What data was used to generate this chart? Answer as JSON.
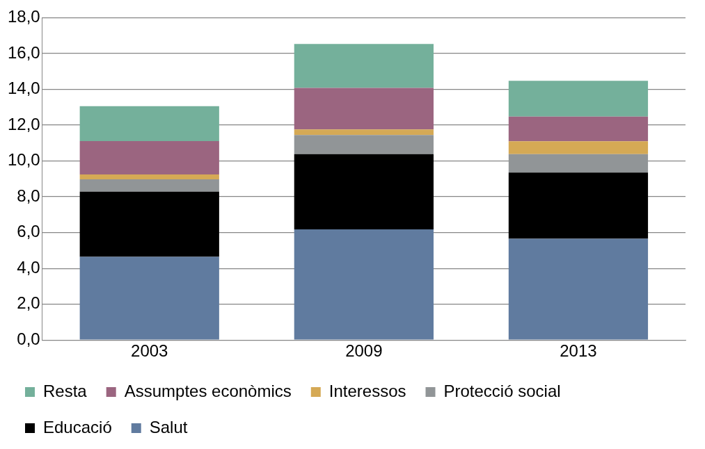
{
  "chart_data": {
    "type": "bar",
    "stacked": true,
    "categories": [
      "2003",
      "2009",
      "2013"
    ],
    "series": [
      {
        "name": "Salut",
        "color": "#607b9f",
        "values": [
          4.65,
          6.18,
          5.65
        ]
      },
      {
        "name": "Educació",
        "color": "#000000",
        "values": [
          3.63,
          4.2,
          3.7
        ]
      },
      {
        "name": "Protecció social",
        "color": "#919597",
        "values": [
          0.69,
          1.07,
          1.03
        ]
      },
      {
        "name": "Interessos",
        "color": "#d5a955",
        "values": [
          0.27,
          0.31,
          0.72
        ]
      },
      {
        "name": "Assumptes econòmics",
        "color": "#9b6580",
        "values": [
          1.87,
          2.32,
          1.38
        ]
      },
      {
        "name": "Resta",
        "color": "#74b09b",
        "values": [
          1.95,
          2.45,
          1.99
        ]
      }
    ],
    "ylim": [
      0,
      18
    ],
    "yticks": [
      {
        "value": 0,
        "label": "0,0"
      },
      {
        "value": 2,
        "label": "2,0"
      },
      {
        "value": 4,
        "label": "4,0"
      },
      {
        "value": 6,
        "label": "6,0"
      },
      {
        "value": 8,
        "label": "8,0"
      },
      {
        "value": 10,
        "label": "10,0"
      },
      {
        "value": 12,
        "label": "12,0"
      },
      {
        "value": 14,
        "label": "14,0"
      },
      {
        "value": 16,
        "label": "16,0"
      },
      {
        "value": 18,
        "label": "18,0"
      }
    ],
    "grid": "y",
    "legend": "bottom"
  }
}
